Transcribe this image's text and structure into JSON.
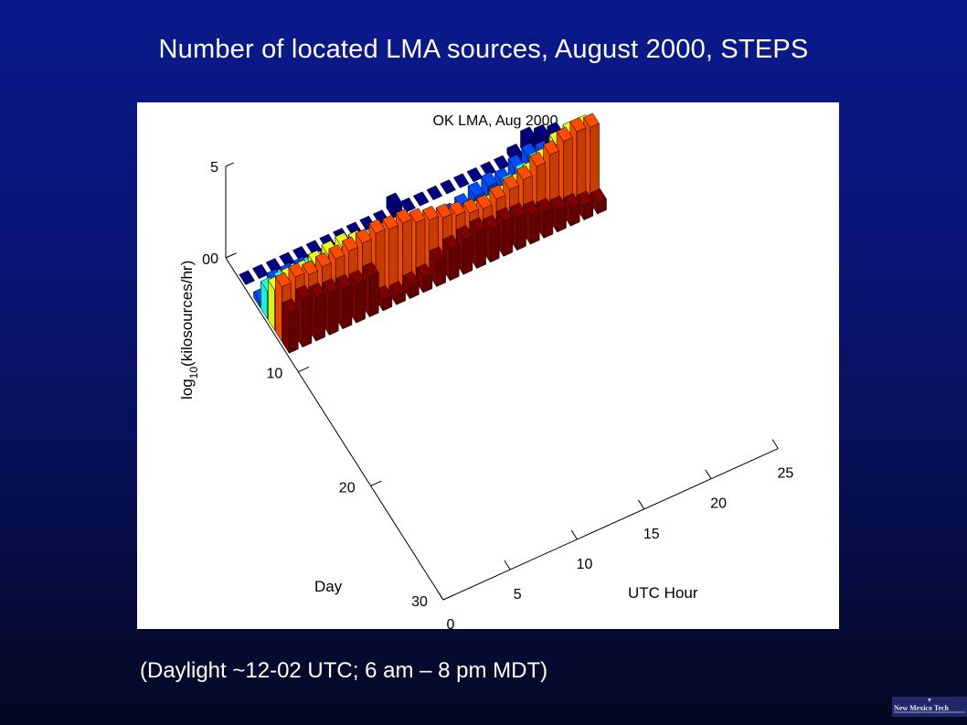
{
  "slide": {
    "title": "Number of located LMA sources, August 2000,  STEPS",
    "caption": "(Daylight ~12-02 UTC;  6 am – 8 pm MDT)",
    "logo_text": "New Mexico Tech"
  },
  "chart_data": {
    "type": "bar3d",
    "title": "OK LMA, Aug 2000",
    "xlabel": "UTC Hour",
    "ylabel": "Day",
    "zlabel_main": "log",
    "zlabel_sub": "10",
    "zlabel_tail": "(kilosources/hr)",
    "x_ticks": [
      "0",
      "5",
      "10",
      "15",
      "20",
      "25"
    ],
    "y_ticks": [
      "0",
      "10",
      "20",
      "30"
    ],
    "z_ticks": [
      "0",
      "5"
    ],
    "xlim": [
      0,
      25
    ],
    "ylim": [
      0,
      30
    ],
    "zlim": [
      0,
      5
    ],
    "colormap": "jet",
    "hours": [
      0,
      1,
      2,
      3,
      4,
      5,
      6,
      7,
      8,
      9,
      10,
      11,
      12,
      13,
      14,
      15,
      16,
      17,
      18,
      19,
      20,
      21,
      22,
      23
    ],
    "days": [
      2,
      4,
      5,
      6,
      7,
      8
    ],
    "z": [
      [
        0.0,
        0.0,
        0.0,
        0.0,
        0.0,
        0.0,
        0.0,
        0.0,
        0.0,
        0.0,
        0.0,
        0.6,
        0.0,
        0.0,
        0.0,
        0.0,
        0.0,
        0.0,
        0.0,
        0.0,
        0.3,
        0.9,
        0.7,
        0.5
      ],
      [
        0.3,
        1.0,
        1.0,
        1.0,
        1.0,
        1.0,
        0.8,
        0.4,
        0.6,
        0.3,
        0.2,
        0.2,
        0.2,
        0.2,
        0.3,
        0.5,
        0.8,
        1.0,
        0.9,
        1.3,
        1.6,
        1.4,
        1.6,
        1.6
      ],
      [
        1.5,
        1.6,
        1.5,
        1.6,
        1.4,
        1.5,
        1.4,
        1.2,
        1.1,
        1.0,
        0.9,
        0.7,
        0.6,
        0.4,
        0.4,
        0.5,
        0.7,
        0.9,
        1.2,
        1.5,
        1.8,
        1.7,
        2.0,
        1.9
      ],
      [
        2.2,
        2.4,
        2.4,
        2.6,
        2.8,
        2.9,
        2.7,
        2.4,
        2.3,
        2.1,
        1.8,
        1.6,
        1.4,
        1.2,
        1.2,
        1.4,
        1.4,
        1.6,
        1.9,
        2.2,
        2.6,
        3.2,
        3.4,
        3.4
      ],
      [
        3.0,
        3.2,
        3.0,
        3.1,
        3.2,
        3.3,
        3.4,
        3.6,
        3.5,
        3.5,
        3.2,
        3.0,
        2.8,
        2.6,
        2.4,
        2.3,
        2.5,
        2.7,
        2.9,
        3.3,
        3.6,
        4.0,
        4.2,
        4.1
      ],
      [
        2.2,
        2.6,
        2.4,
        2.3,
        2.2,
        2.1,
        2.2,
        0.6,
        0.5,
        0.7,
        0.8,
        1.4,
        1.7,
        1.9,
        2.0,
        1.8,
        1.9,
        1.8,
        1.6,
        1.4,
        1.2,
        1.0,
        0.8,
        0.6
      ]
    ]
  }
}
